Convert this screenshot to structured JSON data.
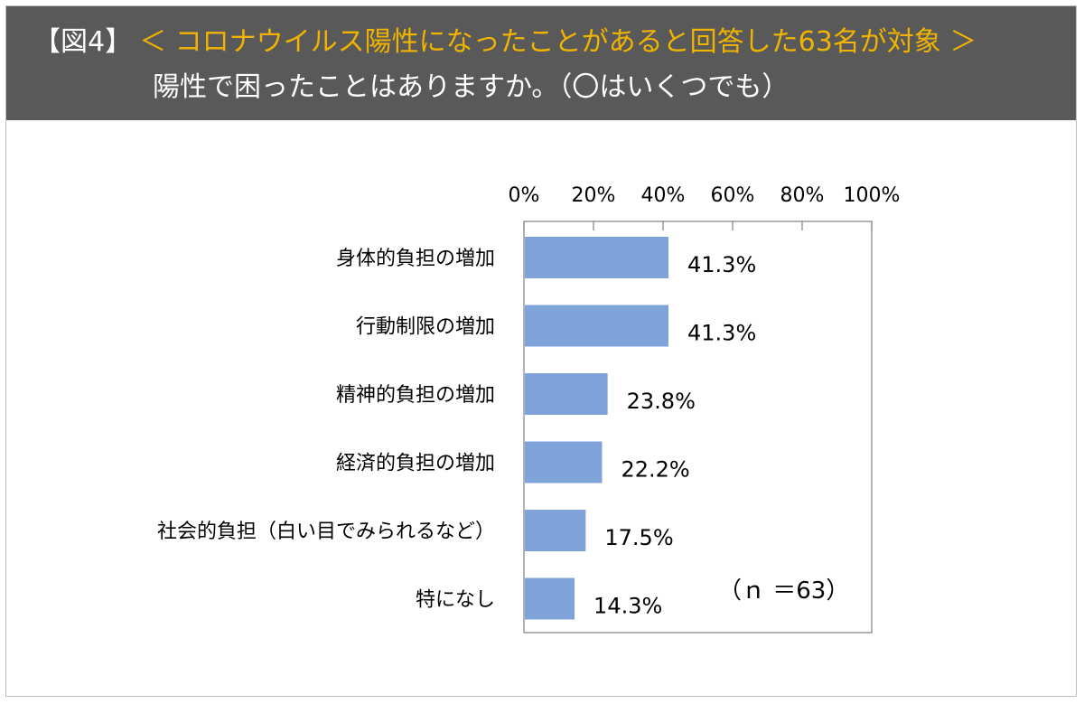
{
  "header": {
    "figure_label": "【図4】",
    "subtitle": "＜ コロナウイルス陽性になったことがあると回答した63名が対象 ＞",
    "question": "陽性で困ったことはありますか。（〇はいくつでも）"
  },
  "colors": {
    "header_bg": "#595959",
    "subtitle": "#f0b400",
    "bar": "#7fa3d8"
  },
  "chart_data": {
    "type": "bar",
    "orientation": "horizontal",
    "categories": [
      "身体的負担の増加",
      "行動制限の増加",
      "精神的負担の増加",
      "経済的負担の増加",
      "社会的負担（白い目でみられるなど）",
      "特になし"
    ],
    "values": [
      41.3,
      41.3,
      23.8,
      22.2,
      17.5,
      14.3
    ],
    "value_labels": [
      "41.3%",
      "41.3%",
      "23.8%",
      "22.2%",
      "17.5%",
      "14.3%"
    ],
    "xlim": [
      0,
      100
    ],
    "ticks": [
      0,
      20,
      40,
      60,
      80,
      100
    ],
    "tick_labels": [
      "0%",
      "20%",
      "40%",
      "60%",
      "80%",
      "100%"
    ],
    "axis_position": "top",
    "grid": false,
    "note": "（ｎ ＝63）"
  }
}
